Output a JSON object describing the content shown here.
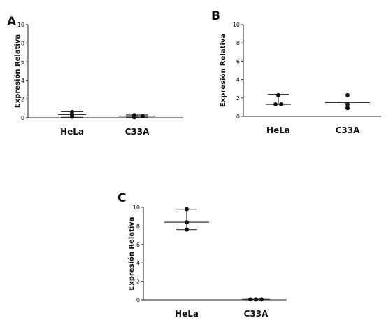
{
  "chart_data": [
    {
      "type": "scatter",
      "panel_label": "A",
      "ylabel": "Expresión Relativa",
      "ylim": [
        0,
        10
      ],
      "yticks": [
        0,
        2,
        4,
        6,
        8,
        10
      ],
      "categories": [
        "HeLa",
        "C33A"
      ],
      "points": [
        [
          0.6,
          0.1,
          0.35
        ],
        [
          0.28,
          0.05,
          0.18
        ]
      ],
      "mean": [
        0.35,
        0.17
      ],
      "error_range": [
        [
          0.05,
          0.65
        ],
        [
          0.05,
          0.3
        ]
      ],
      "grid": false
    },
    {
      "type": "scatter",
      "panel_label": "B",
      "ylabel": "Expresión Relativa",
      "ylim": [
        0,
        10
      ],
      "yticks": [
        0,
        2,
        4,
        6,
        8,
        10
      ],
      "categories": [
        "HeLa",
        "C33A"
      ],
      "points": [
        [
          2.3,
          1.3,
          1.3
        ],
        [
          2.3,
          1.3,
          0.9
        ]
      ],
      "mean": [
        1.3,
        1.5
      ],
      "error_range": [
        [
          1.3,
          2.4
        ],
        [
          1.5,
          1.5
        ]
      ],
      "grid": false
    },
    {
      "type": "scatter",
      "panel_label": "C",
      "ylabel": "Expresión Relativa",
      "ylim": [
        0,
        10
      ],
      "yticks": [
        0,
        2,
        4,
        6,
        8,
        10
      ],
      "categories": [
        "HeLa",
        "C33A"
      ],
      "points": [
        [
          9.8,
          8.4,
          7.6
        ],
        [
          0.05,
          0.05,
          0.05
        ]
      ],
      "mean": [
        8.4,
        0.05
      ],
      "error_range": [
        [
          7.6,
          9.8
        ],
        [
          0.05,
          0.05
        ]
      ],
      "grid": false
    }
  ]
}
